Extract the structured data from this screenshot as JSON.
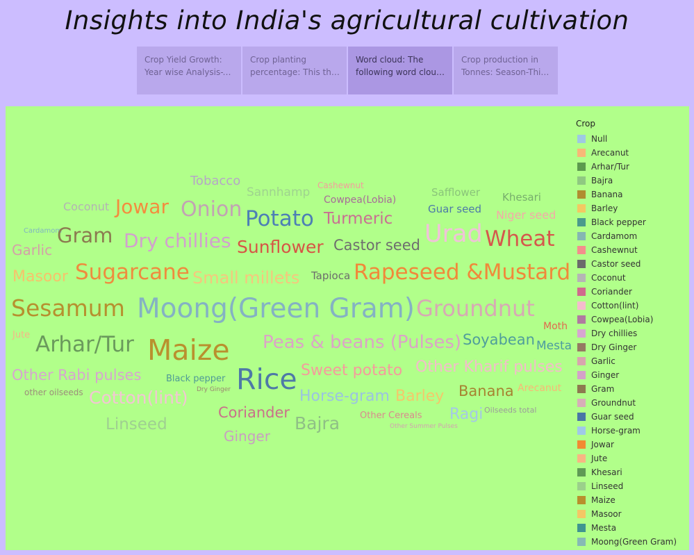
{
  "title": "Insights into India's agricultural cultivation",
  "tabs": [
    {
      "line1": "Crop Yield Growth:",
      "line2": "Year wise Analysis-Th..",
      "active": false
    },
    {
      "line1": "Crop  planting",
      "line2": "percentage: This that ..",
      "active": false
    },
    {
      "line1": "Word cloud: The",
      "line2": "following word cloud ..",
      "active": true
    },
    {
      "line1": "Crop production in",
      "line2": "Tonnes: Season-This ..",
      "active": false
    }
  ],
  "word_cloud": [
    {
      "text": "Tobacco",
      "color": "#b5a7c6"
    },
    {
      "text": "Sannhamp",
      "color": "#9fd38f"
    },
    {
      "text": "Cashewnut",
      "color": "#f49c9c"
    },
    {
      "text": "Safflower",
      "color": "#8ac47a"
    },
    {
      "text": "Khesari",
      "color": "#77ae6c"
    },
    {
      "text": "Coconut",
      "color": "#b3b3b3"
    },
    {
      "text": "Jowar",
      "color": "#f38c3e"
    },
    {
      "text": "Onion",
      "color": "#c2a3b3"
    },
    {
      "text": "Potato",
      "color": "#4d7fb5"
    },
    {
      "text": "Cowpea(Lobia)",
      "color": "#a76b98"
    },
    {
      "text": "Turmeric",
      "color": "#c96f92"
    },
    {
      "text": "Guar seed",
      "color": "#4c79a8"
    },
    {
      "text": "Niger seed",
      "color": "#f3aaa7"
    },
    {
      "text": "Cardamom",
      "color": "#7fb5c2"
    },
    {
      "text": "Gram",
      "color": "#8b7b50"
    },
    {
      "text": "Dry chillies",
      "color": "#d2a0ce"
    },
    {
      "text": "Urad",
      "color": "#f0c3d8"
    },
    {
      "text": "Wheat",
      "color": "#d5584c"
    },
    {
      "text": "Garlic",
      "color": "#d4a0a8"
    },
    {
      "text": "Sunflower",
      "color": "#d65545"
    },
    {
      "text": "Castor seed",
      "color": "#6e6e6e"
    },
    {
      "text": "Masoor",
      "color": "#f6c26b"
    },
    {
      "text": "Sugarcane",
      "color": "#ee8c3e"
    },
    {
      "text": "Small millets",
      "color": "#f5c77d"
    },
    {
      "text": "Tapioca",
      "color": "#6c6c6c"
    },
    {
      "text": "Rapeseed &Mustard",
      "color": "#f0893a"
    },
    {
      "text": "Sesamum",
      "color": "#b6902f"
    },
    {
      "text": "Moong(Green Gram)",
      "color": "#84b2c3"
    },
    {
      "text": "Groundnut",
      "color": "#d7a9b4"
    },
    {
      "text": "Moth",
      "color": "#e0694e"
    },
    {
      "text": "Jute",
      "color": "#f6b586"
    },
    {
      "text": "Arhar/Tur",
      "color": "#6a9a5c"
    },
    {
      "text": "Maize",
      "color": "#b9902e"
    },
    {
      "text": "Peas & beans (Pulses)",
      "color": "#dba4c6"
    },
    {
      "text": "Soyabean",
      "color": "#4f9e9b"
    },
    {
      "text": "Mesta",
      "color": "#4c9aa0"
    },
    {
      "text": "Other Rabi pulses",
      "color": "#d7a5cf"
    },
    {
      "text": "Sweet potato",
      "color": "#f49c9c"
    },
    {
      "text": "Other Kharif pulses",
      "color": "#f3bcca"
    },
    {
      "text": "Black pepper",
      "color": "#4f9a96"
    },
    {
      "text": "Dry Ginger",
      "color": "#9a8570"
    },
    {
      "text": "Rice",
      "color": "#4e79a7"
    },
    {
      "text": "other oilseeds",
      "color": "#9c8e7a"
    },
    {
      "text": "Cotton(lint)",
      "color": "#f2c6d3"
    },
    {
      "text": "Horse-gram",
      "color": "#9ac3e0"
    },
    {
      "text": "Barley",
      "color": "#f3c86a"
    },
    {
      "text": "Banana",
      "color": "#a68331"
    },
    {
      "text": "Arecanut",
      "color": "#f8b874"
    },
    {
      "text": "Oilseeds total",
      "color": "#9b9b9b"
    },
    {
      "text": "Coriander",
      "color": "#c9708a"
    },
    {
      "text": "Other Cereals",
      "color": "#d98a8e"
    },
    {
      "text": "Ragi",
      "color": "#a3c8e6"
    },
    {
      "text": "Linseed",
      "color": "#9fcf91"
    },
    {
      "text": "Bajra",
      "color": "#8fbf86"
    },
    {
      "text": "Other Summer Pulses",
      "color": "#d3a2b0"
    },
    {
      "text": "Ginger",
      "color": "#c89fc0"
    }
  ],
  "legend": {
    "title": "Crop",
    "items": [
      {
        "label": "Null",
        "color": "#9ec9e2"
      },
      {
        "label": "Arecanut",
        "color": "#f7b877"
      },
      {
        "label": "Arhar/Tur",
        "color": "#5c9a4e"
      },
      {
        "label": "Bajra",
        "color": "#8fc981"
      },
      {
        "label": "Banana",
        "color": "#b08d30"
      },
      {
        "label": "Barley",
        "color": "#f2c962"
      },
      {
        "label": "Black pepper",
        "color": "#4a9a8c"
      },
      {
        "label": "Cardamom",
        "color": "#85b6b2"
      },
      {
        "label": "Cashewnut",
        "color": "#f38f8c"
      },
      {
        "label": "Castor seed",
        "color": "#6b6b6b"
      },
      {
        "label": "Coconut",
        "color": "#b5b5b5"
      },
      {
        "label": "Coriander",
        "color": "#d06a8d"
      },
      {
        "label": "Cotton(lint)",
        "color": "#f4bccd"
      },
      {
        "label": "Cowpea(Lobia)",
        "color": "#b07aa0"
      },
      {
        "label": "Dry chillies",
        "color": "#d7a6d1"
      },
      {
        "label": "Dry Ginger",
        "color": "#957a62"
      },
      {
        "label": "Garlic",
        "color": "#d8a5ae"
      },
      {
        "label": "Ginger",
        "color": "#d4a2c8"
      },
      {
        "label": "Gram",
        "color": "#8d7a4f"
      },
      {
        "label": "Groundnut",
        "color": "#d7aeb8"
      },
      {
        "label": "Guar seed",
        "color": "#4976a6"
      },
      {
        "label": "Horse-gram",
        "color": "#9fc9e8"
      },
      {
        "label": "Jowar",
        "color": "#f28a32"
      },
      {
        "label": "Jute",
        "color": "#f7b683"
      },
      {
        "label": "Khesari",
        "color": "#5f9a55"
      },
      {
        "label": "Linseed",
        "color": "#9bd08b"
      },
      {
        "label": "Maize",
        "color": "#b8902c"
      },
      {
        "label": "Masoor",
        "color": "#f3c765"
      },
      {
        "label": "Mesta",
        "color": "#3f9590"
      },
      {
        "label": "Moong(Green Gram)",
        "color": "#86bab5"
      }
    ]
  }
}
